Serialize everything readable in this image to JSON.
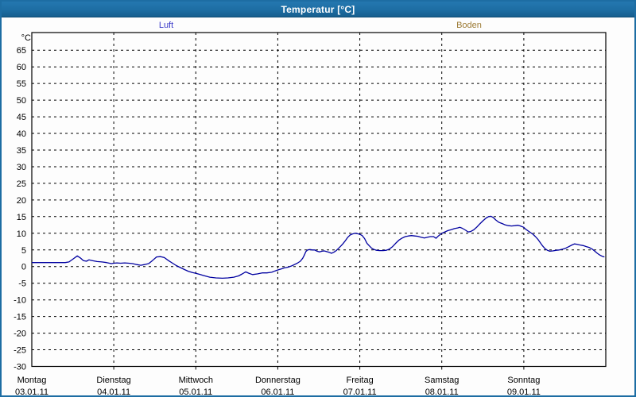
{
  "window": {
    "title": "Temperatur [°C]",
    "title_bar_color": "#1d6da3",
    "border_color": "#1d6da3",
    "background_color": "#fdfdfd"
  },
  "legend": [
    {
      "label": "Luft",
      "color": "#3a3ac8"
    },
    {
      "label": "Boden",
      "color": "#9c7a33"
    }
  ],
  "chart_data": {
    "type": "line",
    "title": "Temperatur [°C]",
    "y_unit_label": "°C",
    "ylabel": "",
    "xlabel": "",
    "grid": "dashed",
    "legend_position": "top",
    "ylim": [
      -30,
      70.3
    ],
    "y_ticks": [
      65,
      60,
      55,
      50,
      45,
      40,
      35,
      30,
      25,
      20,
      15,
      10,
      5,
      0,
      -5,
      -10,
      -15,
      -20,
      -25,
      -30
    ],
    "x_range_hours": [
      0,
      168
    ],
    "x_days": [
      {
        "name": "Montag",
        "date": "03.01.11"
      },
      {
        "name": "Dienstag",
        "date": "04.01.11"
      },
      {
        "name": "Mittwoch",
        "date": "05.01.11"
      },
      {
        "name": "Donnerstag",
        "date": "06.01.11"
      },
      {
        "name": "Freitag",
        "date": "07.01.11"
      },
      {
        "name": "Samstag",
        "date": "08.01.11"
      },
      {
        "name": "Sonntag",
        "date": "09.01.11"
      }
    ],
    "series": [
      {
        "name": "Luft",
        "color": "#0000a0",
        "points": [
          [
            0,
            1.2
          ],
          [
            5.1,
            1.2
          ],
          [
            9.8,
            1.2
          ],
          [
            10.9,
            1.4
          ],
          [
            12.1,
            2.3
          ],
          [
            13.3,
            3.2
          ],
          [
            14.2,
            2.6
          ],
          [
            15.1,
            1.8
          ],
          [
            16,
            1.6
          ],
          [
            16.7,
            2
          ],
          [
            17.7,
            1.8
          ],
          [
            19.1,
            1.5
          ],
          [
            20.5,
            1.4
          ],
          [
            21.9,
            1.2
          ],
          [
            23.3,
            0.9
          ],
          [
            24,
            1
          ],
          [
            24.9,
            1.1
          ],
          [
            26,
            1
          ],
          [
            27.2,
            1.1
          ],
          [
            28.4,
            1
          ],
          [
            29.5,
            0.9
          ],
          [
            30.7,
            0.6
          ],
          [
            31.9,
            0.4
          ],
          [
            33,
            0.6
          ],
          [
            34.2,
            0.9
          ],
          [
            35.3,
            1.8
          ],
          [
            36.5,
            2.9
          ],
          [
            37.7,
            3
          ],
          [
            38.8,
            2.7
          ],
          [
            40,
            1.8
          ],
          [
            41.2,
            1
          ],
          [
            42.3,
            0.3
          ],
          [
            43.5,
            -0.3
          ],
          [
            44.7,
            -0.9
          ],
          [
            45.8,
            -1.4
          ],
          [
            47,
            -1.8
          ],
          [
            47.9,
            -2
          ],
          [
            49.3,
            -2.4
          ],
          [
            50.7,
            -2.8
          ],
          [
            52.1,
            -3.2
          ],
          [
            53.9,
            -3.4
          ],
          [
            55.8,
            -3.5
          ],
          [
            57.4,
            -3.4
          ],
          [
            59.1,
            -3.2
          ],
          [
            60.5,
            -2.8
          ],
          [
            61.6,
            -2.2
          ],
          [
            62.6,
            -1.6
          ],
          [
            63.5,
            -2
          ],
          [
            64.6,
            -2.4
          ],
          [
            66,
            -2.2
          ],
          [
            67.4,
            -1.9
          ],
          [
            68.8,
            -1.9
          ],
          [
            70.2,
            -1.7
          ],
          [
            71.2,
            -1.3
          ],
          [
            72.1,
            -1
          ],
          [
            73,
            -0.7
          ],
          [
            73.9,
            -0.4
          ],
          [
            74.9,
            -0.2
          ],
          [
            75.8,
            0.1
          ],
          [
            76.7,
            0.5
          ],
          [
            77.7,
            1
          ],
          [
            78.6,
            1.6
          ],
          [
            79.3,
            2.5
          ],
          [
            79.8,
            3.5
          ],
          [
            80.2,
            4.5
          ],
          [
            80.7,
            5
          ],
          [
            81.4,
            5.1
          ],
          [
            82.1,
            5
          ],
          [
            82.8,
            5
          ],
          [
            83.5,
            4.6
          ],
          [
            84.2,
            4.4
          ],
          [
            84.9,
            4.6
          ],
          [
            85.6,
            4.7
          ],
          [
            86.3,
            4.5
          ],
          [
            87,
            4.3
          ],
          [
            87.7,
            4
          ],
          [
            88.4,
            4.3
          ],
          [
            89.1,
            4.8
          ],
          [
            89.8,
            5.5
          ],
          [
            90.5,
            6.2
          ],
          [
            91.1,
            6.9
          ],
          [
            91.8,
            7.8
          ],
          [
            92.5,
            8.8
          ],
          [
            93.2,
            9.5
          ],
          [
            93.9,
            9.8
          ],
          [
            94.6,
            10
          ],
          [
            95.3,
            9.9
          ],
          [
            96,
            9.7
          ],
          [
            96.7,
            9.3
          ],
          [
            97.4,
            8.4
          ],
          [
            98.1,
            7
          ],
          [
            98.8,
            6.2
          ],
          [
            99.5,
            5.5
          ],
          [
            100.2,
            5.1
          ],
          [
            100.9,
            4.9
          ],
          [
            101.8,
            4.8
          ],
          [
            102.8,
            4.8
          ],
          [
            103.7,
            4.9
          ],
          [
            104.6,
            5.2
          ],
          [
            105.6,
            6
          ],
          [
            106.5,
            7
          ],
          [
            107.4,
            7.9
          ],
          [
            108.3,
            8.5
          ],
          [
            109.3,
            9
          ],
          [
            110.2,
            9.2
          ],
          [
            111.1,
            9.3
          ],
          [
            112.1,
            9.2
          ],
          [
            113,
            9.1
          ],
          [
            113.9,
            8.8
          ],
          [
            114.9,
            8.6
          ],
          [
            115.8,
            8.8
          ],
          [
            116.7,
            9
          ],
          [
            117.6,
            9
          ],
          [
            118.3,
            8.5
          ],
          [
            119,
            9.2
          ],
          [
            120,
            10
          ],
          [
            120.9,
            10.4
          ],
          [
            121.8,
            10.8
          ],
          [
            122.8,
            11.1
          ],
          [
            123.7,
            11.4
          ],
          [
            124.6,
            11.6
          ],
          [
            125.3,
            11.8
          ],
          [
            126,
            11.5
          ],
          [
            127,
            10.9
          ],
          [
            127.7,
            10.4
          ],
          [
            128.4,
            10.5
          ],
          [
            129.3,
            11
          ],
          [
            130.2,
            11.8
          ],
          [
            131.1,
            12.8
          ],
          [
            132.1,
            13.8
          ],
          [
            133,
            14.6
          ],
          [
            133.7,
            15
          ],
          [
            134.4,
            15.1
          ],
          [
            135.1,
            14.7
          ],
          [
            135.8,
            14
          ],
          [
            136.7,
            13.3
          ],
          [
            137.7,
            12.9
          ],
          [
            138.6,
            12.5
          ],
          [
            139.5,
            12.3
          ],
          [
            140.4,
            12.2
          ],
          [
            141.4,
            12.3
          ],
          [
            142.3,
            12.4
          ],
          [
            143,
            12.2
          ],
          [
            144,
            11.8
          ],
          [
            144.6,
            11.2
          ],
          [
            145.3,
            10.7
          ],
          [
            146,
            10.2
          ],
          [
            146.7,
            9.7
          ],
          [
            147.4,
            9
          ],
          [
            148.1,
            8.2
          ],
          [
            148.8,
            7.2
          ],
          [
            149.5,
            6.2
          ],
          [
            150.2,
            5.4
          ],
          [
            150.9,
            4.9
          ],
          [
            151.6,
            4.6
          ],
          [
            152.5,
            4.7
          ],
          [
            153.5,
            4.9
          ],
          [
            154.4,
            5
          ],
          [
            155.3,
            5.2
          ],
          [
            156.2,
            5.5
          ],
          [
            157.2,
            6
          ],
          [
            158.1,
            6.5
          ],
          [
            158.8,
            6.8
          ],
          [
            159.5,
            6.7
          ],
          [
            160.4,
            6.5
          ],
          [
            161.4,
            6.3
          ],
          [
            162.3,
            6
          ],
          [
            163.2,
            5.7
          ],
          [
            164.1,
            5.2
          ],
          [
            164.8,
            4.6
          ],
          [
            165.5,
            4
          ],
          [
            166.2,
            3.5
          ],
          [
            166.9,
            3.1
          ],
          [
            167.6,
            2.9
          ]
        ]
      },
      {
        "name": "Boden",
        "color": "#9c7a33",
        "points": []
      }
    ]
  }
}
